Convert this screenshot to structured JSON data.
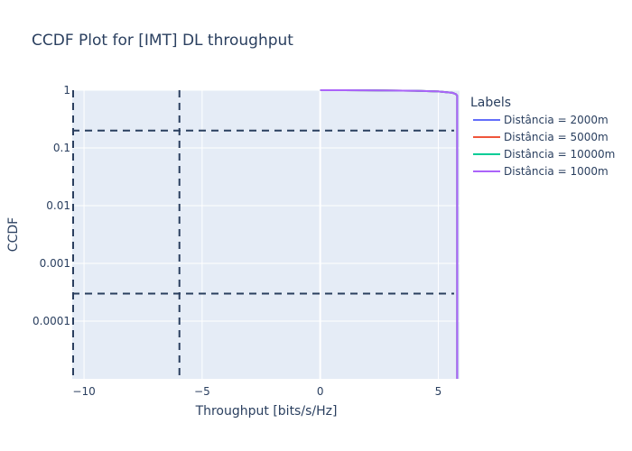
{
  "chart_data": {
    "type": "line",
    "title": "CCDF Plot for [IMT] DL throughput",
    "xlabel": "Throughput [bits/s/Hz]",
    "ylabel": "CCDF",
    "xlim": [
      -10.5,
      5.9
    ],
    "ylim": [
      1e-05,
      1
    ],
    "yscale": "log",
    "x_ticks": [
      -10,
      -5,
      0,
      5
    ],
    "x_tick_labels": [
      "−10",
      "−5",
      "0",
      "5"
    ],
    "y_ticks": [
      1,
      0.1,
      0.01,
      0.001,
      0.0001
    ],
    "y_tick_labels": [
      "1",
      "0.1",
      "0.01",
      "0.001",
      "0.0001"
    ],
    "grid": true,
    "legend": {
      "title": "Labels",
      "placement": "right"
    },
    "series": [
      {
        "name": "Distância = 2000m",
        "color": "#636efa",
        "x": [
          0.0,
          2.0,
          4.0,
          5.0,
          5.6,
          5.75,
          5.8,
          5.8
        ],
        "y": [
          1,
          0.995,
          0.98,
          0.95,
          0.9,
          0.85,
          0.8,
          1e-05
        ]
      },
      {
        "name": "Distância = 5000m",
        "color": "#ef553b",
        "x": [
          0.0,
          2.0,
          4.0,
          5.0,
          5.6,
          5.75,
          5.8,
          5.8
        ],
        "y": [
          1,
          0.995,
          0.98,
          0.95,
          0.9,
          0.85,
          0.8,
          1e-05
        ]
      },
      {
        "name": "Distância = 10000m",
        "color": "#00cc96",
        "x": [
          0.0,
          2.0,
          4.0,
          5.0,
          5.6,
          5.75,
          5.8,
          5.8
        ],
        "y": [
          1,
          0.995,
          0.98,
          0.95,
          0.9,
          0.85,
          0.8,
          1e-05
        ]
      },
      {
        "name": "Distância = 1000m",
        "color": "#ab63fa",
        "x": [
          0.0,
          2.0,
          4.0,
          5.0,
          5.6,
          5.75,
          5.8,
          5.8
        ],
        "y": [
          1,
          0.995,
          0.98,
          0.95,
          0.9,
          0.85,
          0.8,
          1e-05
        ]
      }
    ],
    "reference_lines": {
      "color": "#2a3f5f",
      "style": "dashed",
      "vertical_x": [
        -10.5,
        -6.0
      ],
      "horizontal_y": [
        0.2,
        0.0003
      ]
    }
  }
}
